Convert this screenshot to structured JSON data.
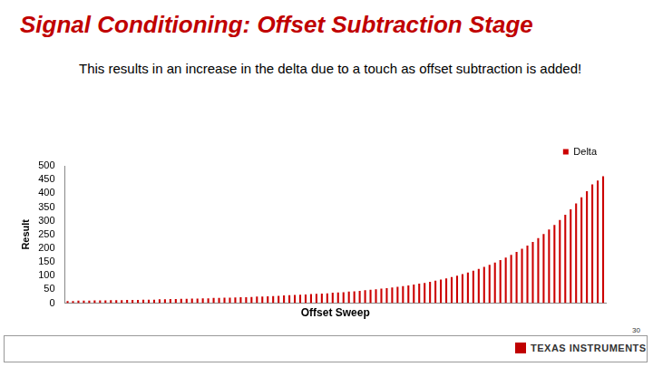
{
  "slide": {
    "title": "Signal Conditioning: Offset Subtraction Stage",
    "subtitle": "This results in an increase in the delta due to a touch as offset subtraction is added!"
  },
  "chart_data": {
    "type": "bar",
    "x_label": "Offset Sweep",
    "y_label": "Result",
    "categories": [
      null,
      null,
      null,
      null,
      null,
      null,
      null,
      null,
      null,
      null,
      null,
      null,
      null,
      null,
      null,
      null,
      null,
      null,
      null,
      null,
      null,
      null,
      null,
      null,
      null,
      null,
      null,
      null,
      null,
      null,
      null,
      null,
      null,
      null,
      null,
      null,
      null,
      null,
      null,
      null,
      null,
      null,
      null,
      null,
      null,
      null,
      null,
      null,
      null,
      null,
      null,
      null,
      null,
      null,
      null,
      null,
      null,
      null,
      null,
      null,
      null,
      null,
      null,
      null,
      null,
      null,
      null,
      null,
      null,
      null,
      null,
      null,
      null,
      null,
      null,
      null,
      null,
      null,
      null,
      null,
      null,
      null,
      null,
      null,
      null,
      null,
      null,
      null,
      null,
      null,
      null,
      null,
      null,
      null,
      null,
      null,
      null,
      null,
      null,
      null
    ],
    "series": [
      {
        "name": "Delta",
        "color": "#cc0000",
        "values": [
          8,
          8,
          9,
          9,
          9,
          10,
          10,
          10,
          11,
          11,
          11,
          12,
          12,
          12,
          13,
          13,
          13,
          14,
          14,
          15,
          15,
          16,
          16,
          17,
          17,
          18,
          18,
          19,
          19,
          20,
          20,
          21,
          22,
          22,
          23,
          24,
          24,
          25,
          26,
          27,
          28,
          29,
          30,
          31,
          32,
          33,
          34,
          35,
          36,
          38,
          39,
          40,
          42,
          43,
          45,
          47,
          49,
          51,
          53,
          55,
          57,
          60,
          62,
          65,
          68,
          71,
          74,
          78,
          82,
          86,
          90,
          95,
          100,
          106,
          112,
          118,
          125,
          132,
          140,
          148,
          157,
          166,
          176,
          187,
          198,
          210,
          223,
          237,
          252,
          268,
          285,
          303,
          322,
          342,
          363,
          385,
          408,
          432,
          446,
          462
        ]
      }
    ],
    "ylim": [
      0,
      500
    ],
    "yticks": [
      0,
      50,
      100,
      150,
      200,
      250,
      300,
      350,
      400,
      450,
      500
    ],
    "grid": false,
    "legend": "top-right",
    "tick_labels": "y"
  },
  "footer": {
    "page": "30",
    "logo_text": "TEXAS INSTRUMENTS"
  }
}
